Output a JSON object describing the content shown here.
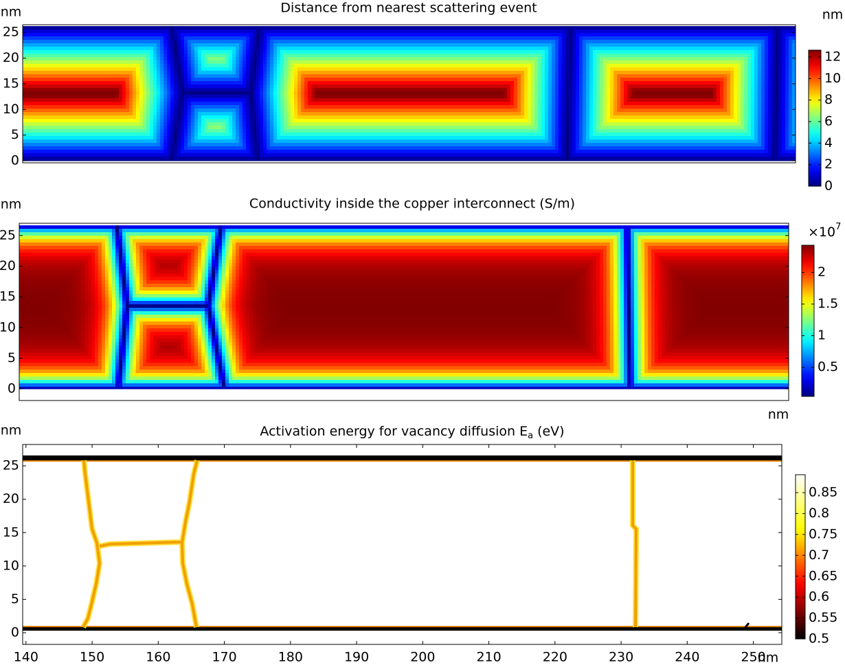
{
  "chart_data": [
    {
      "type": "heatmap",
      "title": "Distance from nearest scattering event",
      "y_unit": "nm",
      "ylim": [
        -0.4,
        26.5
      ],
      "yticks": [
        0,
        5,
        10,
        15,
        20,
        25
      ],
      "colormap": "jet",
      "colorbar": {
        "unit": "nm",
        "lim": [
          0,
          12.64
        ],
        "ticks": [
          0,
          2,
          4,
          6,
          8,
          10,
          12
        ]
      }
    },
    {
      "type": "heatmap",
      "title": "Conductivity inside the copper interconnect (S/m)",
      "y_unit": "nm",
      "x_unit": "nm",
      "ylim": [
        -1.9,
        27
      ],
      "yticks": [
        0,
        5,
        10,
        15,
        20,
        25
      ],
      "colormap": "jet",
      "colorbar": {
        "multiplier": {
          "base": "×10",
          "exponent": "7"
        },
        "lim": [
          0.04,
          2.43
        ],
        "ticks": [
          0.5,
          1,
          1.5,
          2
        ]
      }
    },
    {
      "type": "heatmap",
      "title": {
        "text": "Activation energy for vacancy diffusion E",
        "subscript": "a",
        "suffix": "(eV)"
      },
      "y_unit": "nm",
      "x_unit": "nm",
      "xlim": [
        139.5,
        254.3
      ],
      "xticks": [
        140,
        150,
        160,
        170,
        180,
        190,
        200,
        210,
        220,
        230,
        240,
        250
      ],
      "ylim": [
        -1.75,
        28.2
      ],
      "yticks": [
        0,
        5,
        10,
        15,
        20,
        25
      ],
      "colormap": "hot",
      "colorbar": {
        "lim": [
          0.5,
          0.893
        ],
        "ticks": [
          0.5,
          0.55,
          0.6,
          0.65,
          0.7,
          0.75,
          0.8,
          0.85
        ]
      }
    }
  ]
}
